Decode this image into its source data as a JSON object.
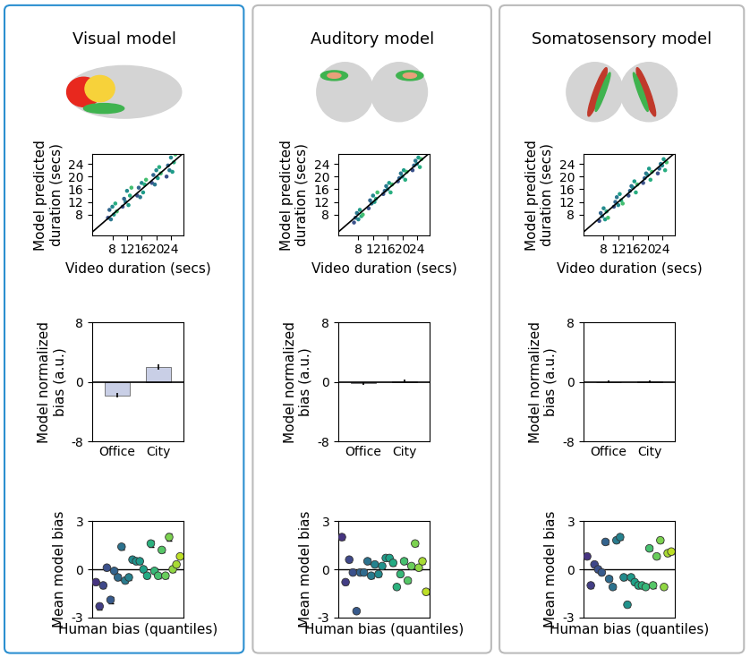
{
  "chart_data": [
    {
      "type": "scatter",
      "title": "Visual model",
      "x": [
        6.8,
        7.2,
        7.6,
        8,
        8.4,
        8.8,
        9.2,
        10.8,
        11.2,
        11.6,
        12,
        12.4,
        12.8,
        13.2,
        14.8,
        15.2,
        15.6,
        16,
        16.4,
        16.8,
        17.2,
        18.8,
        19.2,
        19.6,
        20,
        20.4,
        20.8,
        21.2,
        22.8,
        23.2,
        23.6,
        24,
        24.4,
        24.8,
        25.2
      ],
      "values": [
        7.0,
        9.5,
        6.5,
        10.5,
        8.0,
        11.5,
        9.0,
        10.5,
        13.0,
        12.0,
        15.5,
        11.0,
        14.0,
        16.5,
        14.0,
        16.5,
        13.5,
        18.0,
        15.0,
        17.5,
        19.0,
        18.0,
        20.5,
        17.5,
        22.0,
        19.5,
        23.0,
        21.0,
        20.0,
        23.5,
        22.0,
        26.0,
        21.5,
        24.5,
        27.0
      ],
      "xlabel": "Video duration (secs)",
      "ylabel": "Model predicted\nduration (secs)",
      "xlim": [
        2.5,
        27.5
      ],
      "ylim": [
        1.5,
        27
      ],
      "xticks": [
        8,
        12,
        16,
        20,
        24
      ],
      "yticks": [
        8,
        12,
        16,
        20,
        24
      ]
    },
    {
      "type": "bar",
      "categories": [
        "Office",
        "City"
      ],
      "values": [
        -1.8,
        2.0
      ],
      "errors": [
        0.3,
        0.35
      ],
      "color": "#c9cfe6",
      "ylabel": "Model normalized\nbias (a.u.)",
      "ylim": [
        -8,
        8
      ],
      "yticks": [
        -8,
        0,
        8
      ]
    },
    {
      "type": "scatter",
      "x": [
        1,
        2,
        3,
        4,
        5,
        6,
        7,
        8,
        9,
        10,
        11,
        12,
        13,
        14,
        15,
        16,
        17,
        18,
        19,
        20,
        21,
        22,
        23,
        24
      ],
      "values": [
        -0.8,
        -2.3,
        -1.0,
        0.1,
        -1.9,
        -0.1,
        -0.5,
        1.4,
        -0.7,
        -0.5,
        0.6,
        0.5,
        0.5,
        0.0,
        -0.4,
        1.6,
        -0.1,
        -0.4,
        1.2,
        -0.4,
        2.0,
        0.0,
        0.3,
        0.8
      ],
      "errors": [
        0.15,
        0.2,
        0.15,
        0.15,
        0.2,
        0.15,
        0.15,
        0.15,
        0.15,
        0.15,
        0.15,
        0.15,
        0.15,
        0.15,
        0.15,
        0.2,
        0.15,
        0.15,
        0.15,
        0.15,
        0.2,
        0.15,
        0.15,
        0.15
      ],
      "xlabel": "Human bias (quantiles)",
      "ylabel": "Mean model bias",
      "xlim": [
        0,
        25
      ],
      "ylim": [
        -3,
        3
      ],
      "yticks": [
        -3,
        0,
        3
      ],
      "tick_labels": "y"
    },
    {
      "type": "scatter",
      "title": "Auditory model",
      "x": [
        6.8,
        7.2,
        7.6,
        8,
        8.4,
        8.8,
        9.2,
        10.8,
        11.2,
        11.6,
        12,
        12.4,
        12.8,
        13.2,
        14.8,
        15.2,
        15.6,
        16,
        16.4,
        16.8,
        17.2,
        18.8,
        19.2,
        19.6,
        20,
        20.4,
        20.8,
        21.2,
        22.8,
        23.2,
        23.6,
        24,
        24.4,
        24.8,
        25.2
      ],
      "values": [
        5.5,
        7.0,
        8.5,
        6.5,
        9.5,
        7.5,
        8.0,
        10.0,
        12.5,
        11.5,
        14.0,
        12.0,
        13.0,
        15.0,
        14.5,
        15.5,
        17.0,
        16.0,
        18.0,
        15.0,
        17.5,
        18.5,
        19.5,
        21.0,
        20.0,
        22.0,
        19.0,
        21.5,
        22.0,
        23.5,
        25.0,
        24.0,
        26.0,
        23.0,
        25.5
      ],
      "xlabel": "Video duration (secs)",
      "ylabel": "Model predicted\nduration (secs)",
      "xlim": [
        2.5,
        27.5
      ],
      "ylim": [
        1.5,
        27
      ],
      "xticks": [
        8,
        12,
        16,
        20,
        24
      ],
      "yticks": [
        8,
        12,
        16,
        20,
        24
      ]
    },
    {
      "type": "bar",
      "categories": [
        "Office",
        "City"
      ],
      "values": [
        -0.2,
        0.15
      ],
      "errors": [
        0.15,
        0.2
      ],
      "color": "#c9cfe6",
      "ylabel": "Model normalized\nbias (a.u.)",
      "ylim": [
        -8,
        8
      ],
      "yticks": [
        -8,
        0,
        8
      ]
    },
    {
      "type": "scatter",
      "x": [
        1,
        2,
        3,
        4,
        5,
        6,
        7,
        8,
        9,
        10,
        11,
        12,
        13,
        14,
        15,
        16,
        17,
        18,
        19,
        20,
        21,
        22,
        23,
        24
      ],
      "values": [
        2.0,
        -0.8,
        0.6,
        -0.2,
        -2.6,
        -0.2,
        -0.2,
        0.5,
        -0.4,
        0.3,
        -0.3,
        0.2,
        0.7,
        0.7,
        0.4,
        -1.1,
        -0.3,
        0.5,
        -0.7,
        0.2,
        1.6,
        0.1,
        0.5,
        -1.4
      ],
      "errors": [
        0.15,
        0.15,
        0.15,
        0.15,
        0.15,
        0.15,
        0.15,
        0.15,
        0.15,
        0.15,
        0.15,
        0.15,
        0.15,
        0.15,
        0.15,
        0.15,
        0.15,
        0.15,
        0.15,
        0.15,
        0.15,
        0.15,
        0.15,
        0.15
      ],
      "xlabel": "Human bias (quantiles)",
      "ylabel": "Mean model bias",
      "xlim": [
        0,
        25
      ],
      "ylim": [
        -3,
        3
      ],
      "yticks": [
        -3,
        0,
        3
      ],
      "tick_labels": "y"
    },
    {
      "type": "scatter",
      "title": "Somatosensory model",
      "x": [
        6.8,
        7.2,
        7.6,
        8,
        8.4,
        8.8,
        9.2,
        10.8,
        11.2,
        11.6,
        12,
        12.4,
        12.8,
        13.2,
        14.8,
        15.2,
        15.6,
        16,
        16.4,
        16.8,
        17.2,
        18.8,
        19.2,
        19.6,
        20,
        20.4,
        20.8,
        21.2,
        22.8,
        23.2,
        23.6,
        24,
        24.4,
        24.8,
        25.2
      ],
      "values": [
        6.0,
        8.5,
        7.5,
        10.0,
        6.5,
        9.0,
        7.0,
        10.5,
        12.0,
        13.5,
        11.0,
        14.5,
        12.5,
        11.5,
        14.0,
        15.5,
        17.0,
        16.5,
        18.5,
        15.0,
        17.5,
        18.0,
        19.5,
        21.0,
        20.5,
        22.5,
        19.0,
        21.5,
        21.0,
        22.5,
        24.0,
        23.5,
        25.5,
        22.0,
        24.5
      ],
      "xlabel": "Video duration (secs)",
      "ylabel": "Model predicted\nduration (secs)",
      "xlim": [
        2.5,
        27.5
      ],
      "ylim": [
        1.5,
        27
      ],
      "xticks": [
        8,
        12,
        16,
        20,
        24
      ],
      "yticks": [
        8,
        12,
        16,
        20,
        24
      ]
    },
    {
      "type": "bar",
      "categories": [
        "Office",
        "City"
      ],
      "values": [
        0.03,
        0.05
      ],
      "errors": [
        0.15,
        0.15
      ],
      "color": "#c9cfe6",
      "ylabel": "Model normalized\nbias (a.u.)",
      "ylim": [
        -8,
        8
      ],
      "yticks": [
        -8,
        0,
        8
      ]
    },
    {
      "type": "scatter",
      "x": [
        1,
        2,
        3,
        4,
        5,
        6,
        7,
        8,
        9,
        10,
        11,
        12,
        13,
        14,
        15,
        16,
        17,
        18,
        19,
        20,
        21,
        22,
        23,
        24
      ],
      "values": [
        0.8,
        -1.0,
        0.3,
        0.0,
        -0.2,
        1.7,
        -0.6,
        -1.1,
        1.8,
        2.0,
        -0.5,
        -2.2,
        -0.5,
        -0.8,
        -1.0,
        -1.0,
        -1.1,
        1.3,
        -1.0,
        0.8,
        1.8,
        -1.1,
        1.0,
        1.1
      ],
      "errors": [
        0.15,
        0.15,
        0.15,
        0.15,
        0.15,
        0.15,
        0.15,
        0.15,
        0.15,
        0.15,
        0.15,
        0.15,
        0.15,
        0.15,
        0.15,
        0.15,
        0.15,
        0.15,
        0.15,
        0.15,
        0.15,
        0.15,
        0.15,
        0.15
      ],
      "xlabel": "Human bias (quantiles)",
      "ylabel": "Mean model bias",
      "xlim": [
        0,
        25
      ],
      "ylim": [
        -3,
        3
      ],
      "yticks": [
        -3,
        0,
        3
      ],
      "tick_labels": "y"
    }
  ]
}
